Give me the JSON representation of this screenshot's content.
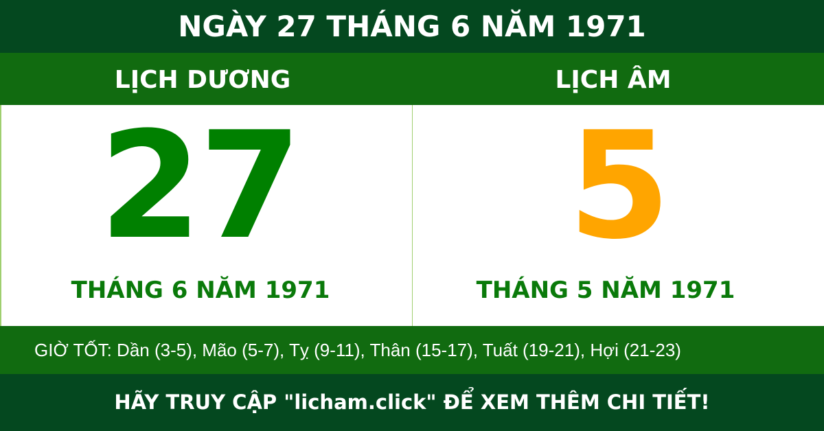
{
  "header": {
    "title": "NGÀY 27 THÁNG 6 NĂM 1971"
  },
  "solar": {
    "label": "LỊCH DƯƠNG",
    "day": "27",
    "month_year": "THÁNG 6 NĂM 1971",
    "color": "#008000"
  },
  "lunar": {
    "label": "LỊCH ÂM",
    "day": "5",
    "month_year": "THÁNG 5 NĂM 1971",
    "color": "#ffa500"
  },
  "good_hours": "GIỜ TỐT: Dần (3-5), Mão (5-7), Tỵ (9-11), Thân (15-17), Tuất (19-21), Hợi (21-23)",
  "footer": {
    "text": "HÃY TRUY CẬP \"licham.click\" ĐỂ XEM THÊM CHI TIẾT!"
  },
  "colors": {
    "dark_green": "#04481f",
    "green": "#116b10"
  }
}
